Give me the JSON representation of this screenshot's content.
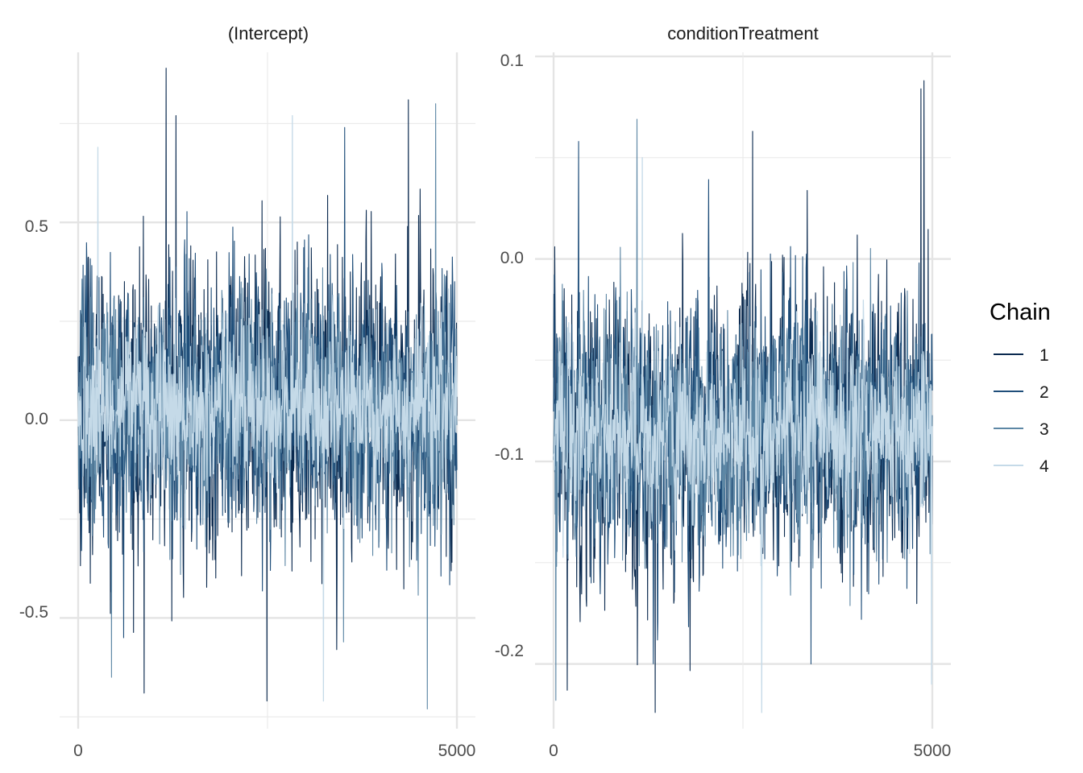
{
  "chart_data": [
    {
      "type": "line",
      "title": "(Intercept)",
      "x_range": [
        0,
        5000
      ],
      "x_ticks": [
        0,
        5000
      ],
      "x_tick_labels": [
        "0",
        "5000"
      ],
      "y_ticks": [
        0.5,
        0.0,
        -0.5
      ],
      "y_tick_labels": [
        "0.5",
        "0.0",
        "-0.5"
      ],
      "ylim": [
        -0.78,
        0.93
      ],
      "grid": true,
      "series": [
        {
          "name": "1",
          "color": "#0b2a4f",
          "center": 0.03,
          "sd": 0.19,
          "spikes": [
            [
              1160,
              0.89
            ],
            [
              1290,
              0.77
            ],
            [
              870,
              -0.69
            ],
            [
              2490,
              -0.71
            ],
            [
              4360,
              0.81
            ]
          ]
        },
        {
          "name": "2",
          "color": "#1f4e7a",
          "center": 0.03,
          "sd": 0.17,
          "spikes": [
            [
              3520,
              0.74
            ],
            [
              600,
              -0.55
            ]
          ]
        },
        {
          "name": "3",
          "color": "#5d87a5",
          "center": 0.03,
          "sd": 0.15,
          "spikes": [
            [
              4720,
              0.8
            ],
            [
              4610,
              -0.73
            ],
            [
              440,
              -0.65
            ]
          ]
        },
        {
          "name": "4",
          "color": "#c5dae8",
          "center": 0.03,
          "sd": 0.1,
          "spikes": [
            [
              2830,
              0.77
            ],
            [
              260,
              0.69
            ],
            [
              3240,
              -0.71
            ]
          ]
        }
      ]
    },
    {
      "type": "line",
      "title": "conditionTreatment",
      "x_range": [
        0,
        5000
      ],
      "x_ticks": [
        0,
        5000
      ],
      "x_tick_labels": [
        "0",
        "5000"
      ],
      "y_ticks": [
        0.1,
        0.0,
        -0.1,
        -0.2
      ],
      "y_tick_labels": [
        "0.1",
        "0.0",
        "-0.1",
        "-0.2"
      ],
      "ylim": [
        -0.232,
        0.102
      ],
      "grid": true,
      "series": [
        {
          "name": "1",
          "color": "#0b2a4f",
          "center": -0.085,
          "sd": 0.036,
          "spikes": [
            [
              4890,
              0.088
            ],
            [
              4850,
              0.084
            ],
            [
              2630,
              0.063
            ],
            [
              1340,
              -0.224
            ],
            [
              180,
              -0.213
            ]
          ]
        },
        {
          "name": "2",
          "color": "#1f4e7a",
          "center": -0.085,
          "sd": 0.033,
          "spikes": [
            [
              330,
              0.058
            ],
            [
              3400,
              -0.2
            ]
          ]
        },
        {
          "name": "3",
          "color": "#5d87a5",
          "center": -0.085,
          "sd": 0.03,
          "spikes": [
            [
              1100,
              0.069
            ],
            [
              30,
              -0.218
            ]
          ]
        },
        {
          "name": "4",
          "color": "#c5dae8",
          "center": -0.085,
          "sd": 0.02,
          "spikes": [
            [
              1170,
              0.05
            ],
            [
              2750,
              -0.224
            ],
            [
              4990,
              -0.21
            ]
          ]
        }
      ]
    }
  ],
  "legend": {
    "title": "Chain",
    "items": [
      {
        "label": "1",
        "color": "#0b2a4f"
      },
      {
        "label": "2",
        "color": "#1f4e7a"
      },
      {
        "label": "3",
        "color": "#5d87a5"
      },
      {
        "label": "4",
        "color": "#c5dae8"
      }
    ]
  }
}
